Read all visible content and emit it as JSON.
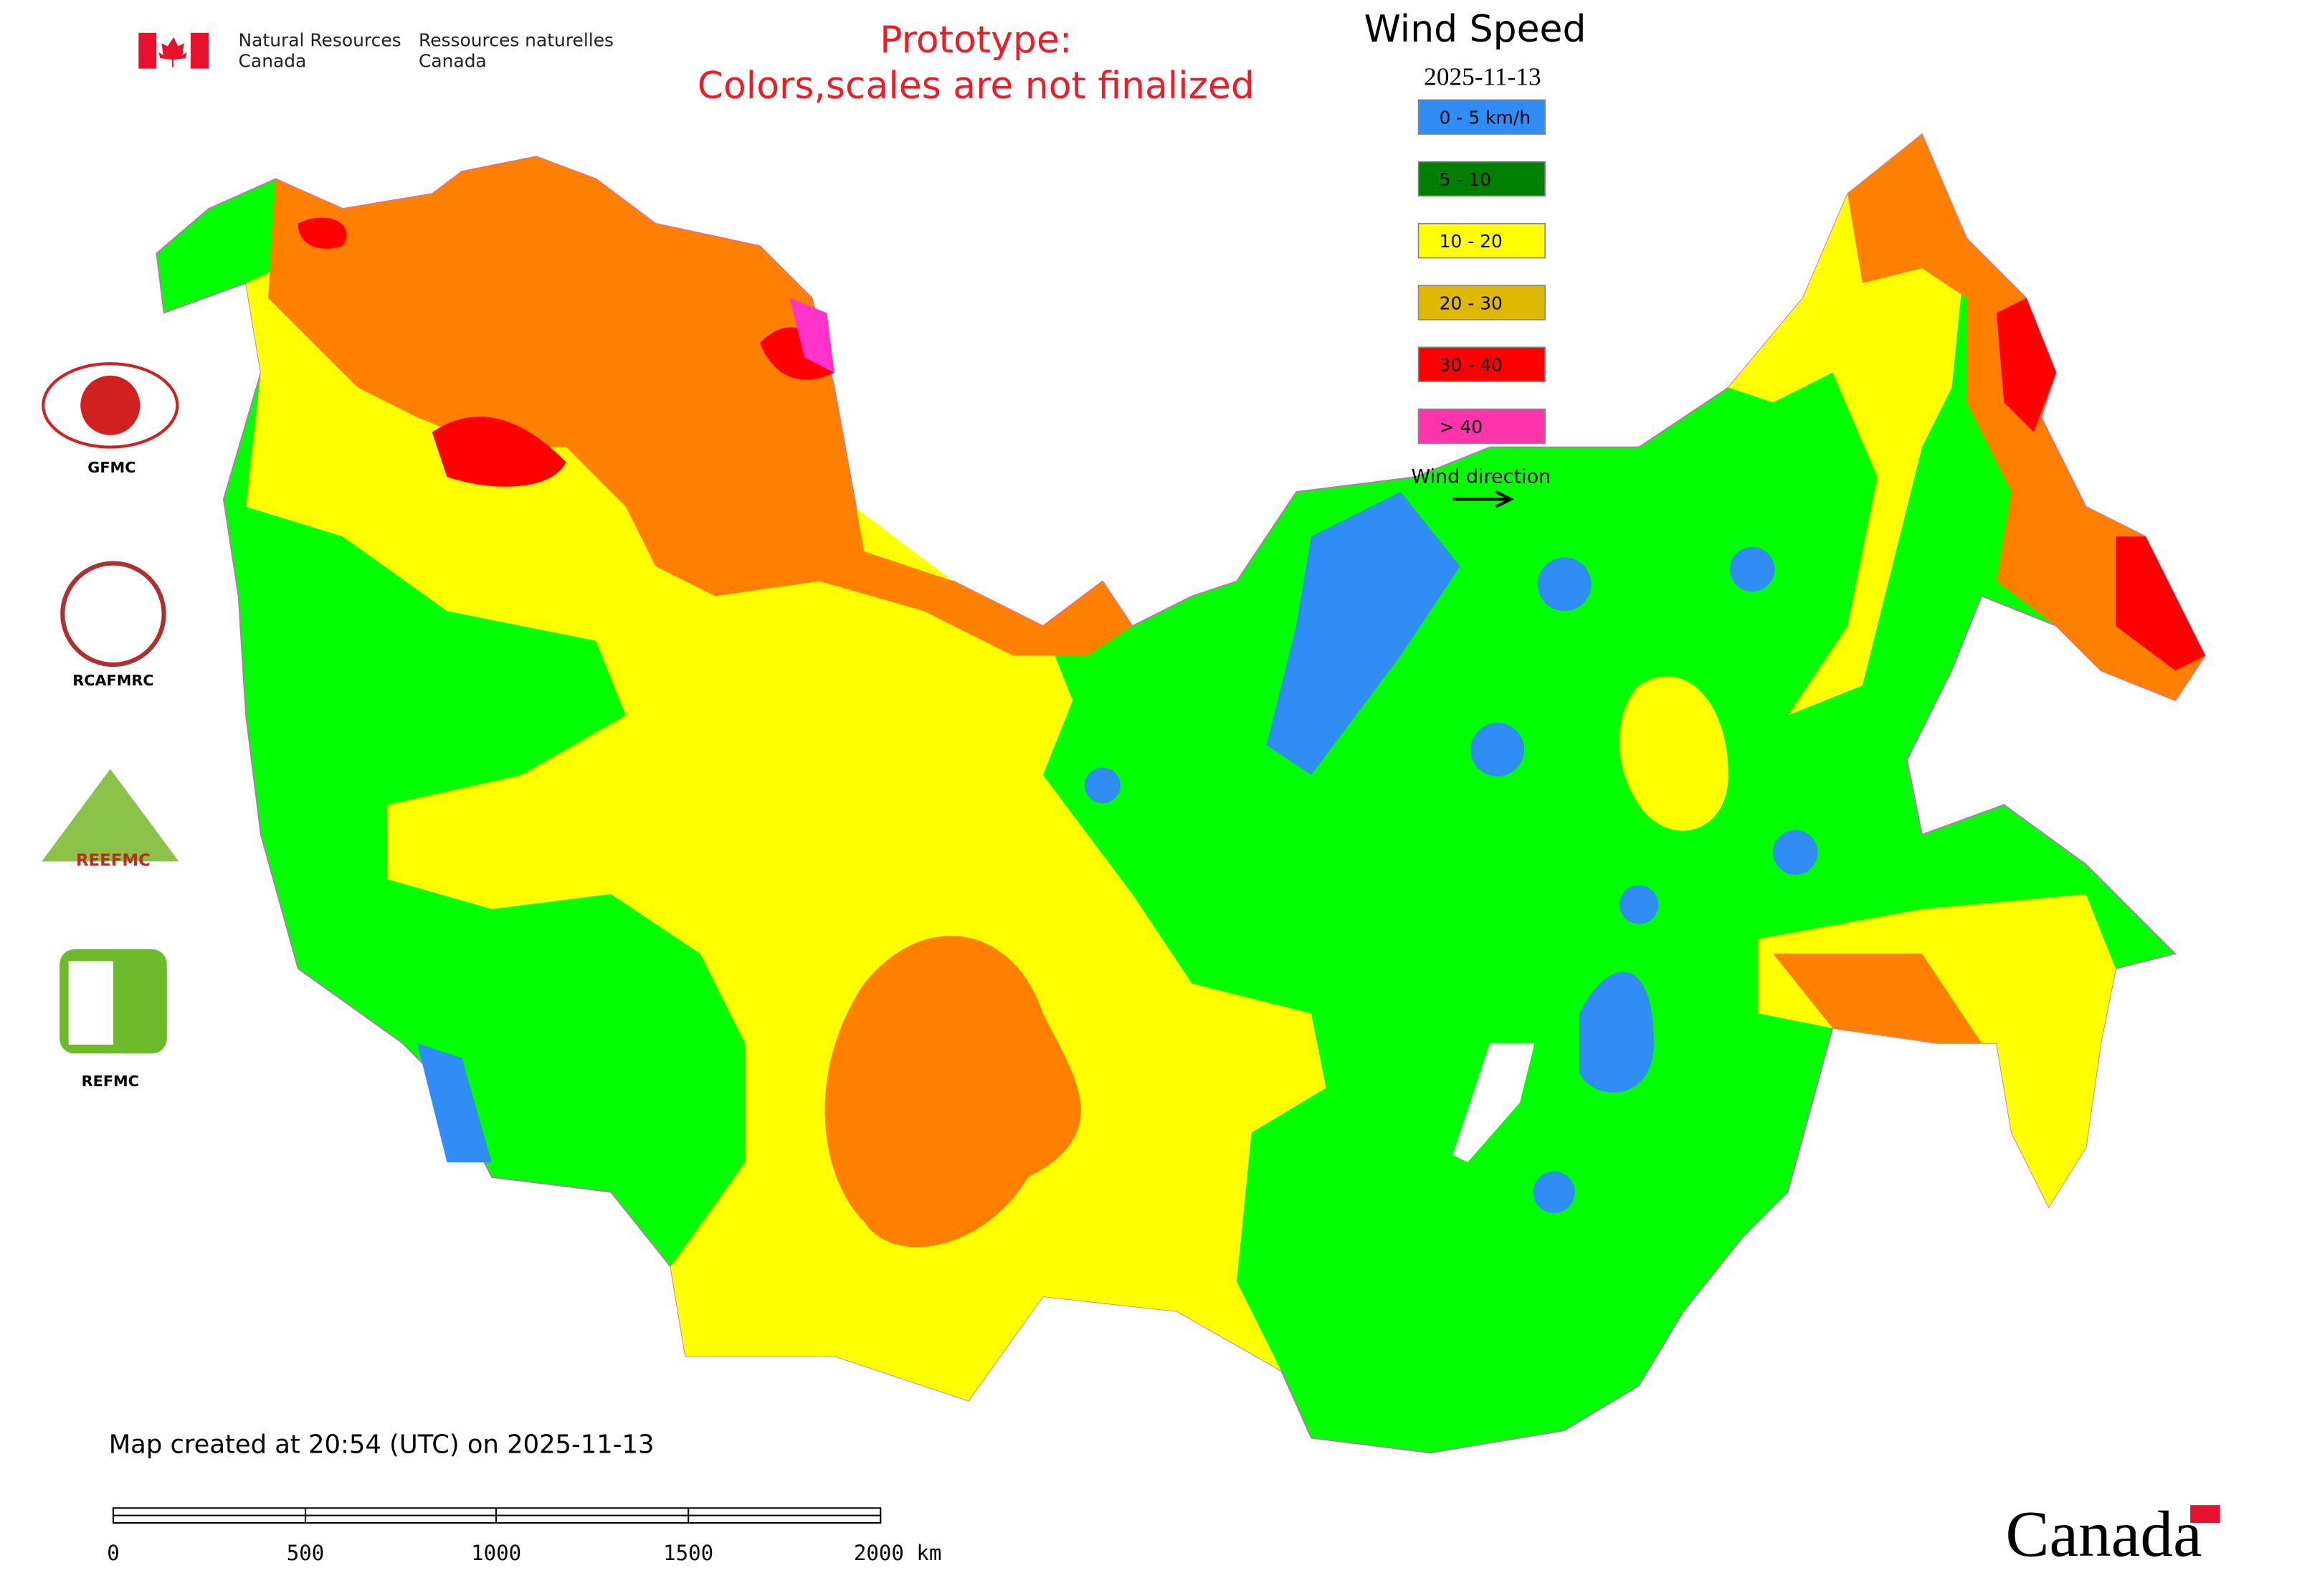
{
  "header": {
    "agency_en": [
      "Natural Resources",
      "Canada"
    ],
    "agency_fr": [
      "Ressources naturelles",
      "Canada"
    ],
    "notice": [
      "Prototype:",
      "Colors,scales are not finalized"
    ]
  },
  "legend": {
    "title": "Wind Speed",
    "date": "2025-11-13",
    "items": [
      {
        "label": "0 - 5 km/h",
        "color": "#2f8df5"
      },
      {
        "label": "5 - 10",
        "color": "#008000"
      },
      {
        "label": "10 - 20",
        "color": "#ffff00"
      },
      {
        "label": "20 - 30",
        "color": "#dfb900"
      },
      {
        "label": "30 - 40",
        "color": "#ff0000"
      },
      {
        "label": "> 40",
        "color": "#ff33aa"
      }
    ],
    "wind_direction": "Wind direction"
  },
  "logos": [
    "GFMC",
    "RCAFMRC",
    "REEFMC",
    "REFMC"
  ],
  "footer": {
    "created": "Map created at 20:54 (UTC) on 2025-11-13",
    "scale_labels": [
      "0",
      "500",
      "1000",
      "1500",
      "2000 km"
    ],
    "wordmark": "Canada"
  }
}
